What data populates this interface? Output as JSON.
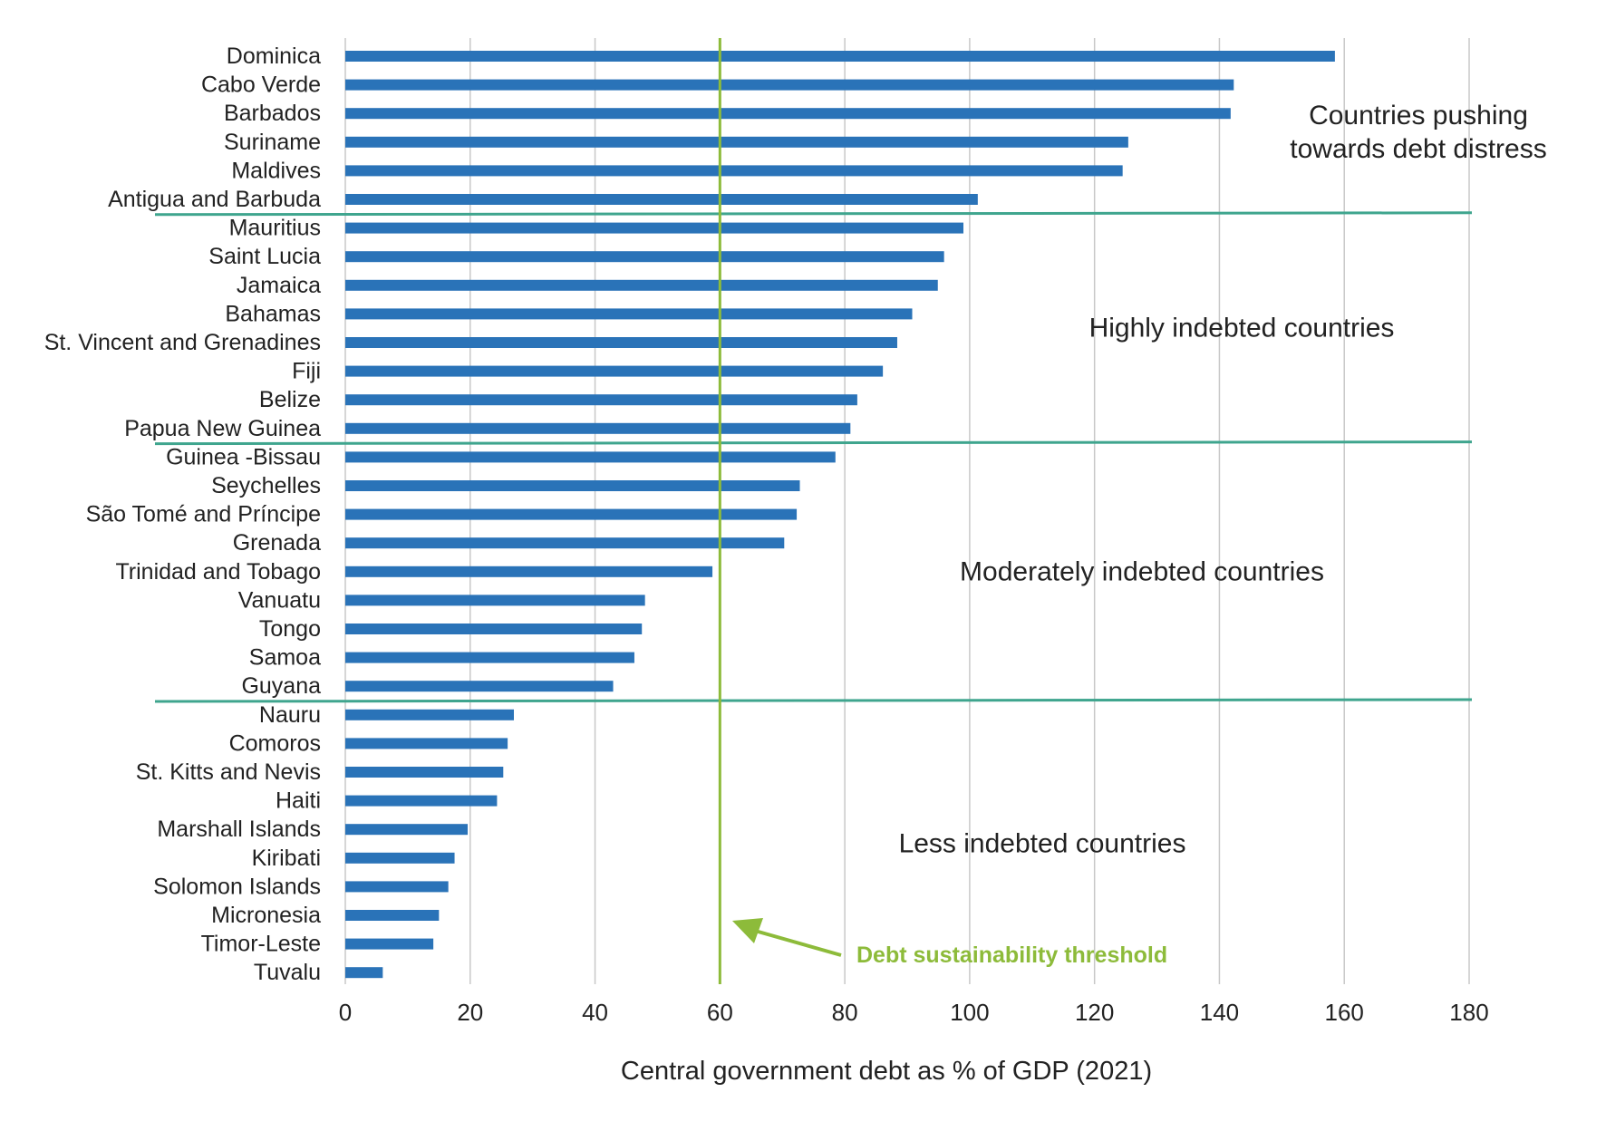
{
  "chart_data": {
    "type": "bar",
    "orientation": "horizontal",
    "title": "",
    "xlabel": "Central government debt as % of GDP (2021)",
    "ylabel": "",
    "xlim": [
      0,
      180
    ],
    "xticks": [
      0,
      20,
      40,
      60,
      80,
      100,
      120,
      140,
      160,
      180
    ],
    "grid": true,
    "categories": [
      "Dominica",
      "Cabo Verde",
      "Barbados",
      "Suriname",
      "Maldives",
      "Antigua and Barbuda",
      "Mauritius",
      "Saint Lucia",
      "Jamaica",
      "Bahamas",
      "St. Vincent and Grenadines",
      "Fiji",
      "Belize",
      "Papua New Guinea",
      "Guinea -Bissau",
      "Seychelles",
      "São Tomé and Príncipe",
      "Grenada",
      "Trinidad and Tobago",
      "Vanuatu",
      "Tongo",
      "Samoa",
      "Guyana",
      "Nauru",
      "Comoros",
      "St. Kitts and Nevis",
      "Haiti",
      "Marshall Islands",
      "Kiribati",
      "Solomon Islands",
      "Micronesia",
      "Timor-Leste",
      "Tuvalu"
    ],
    "values": [
      158.5,
      142.3,
      141.8,
      125.4,
      124.5,
      101.3,
      99.0,
      95.9,
      94.9,
      90.8,
      88.4,
      86.1,
      82.0,
      80.9,
      78.5,
      72.8,
      72.3,
      70.3,
      58.8,
      48.0,
      47.5,
      46.3,
      42.9,
      27.0,
      26.0,
      25.3,
      24.3,
      19.6,
      17.5,
      16.5,
      15.0,
      14.1,
      6.0
    ],
    "bar_color": "#2a73b8",
    "threshold": {
      "value": 60,
      "label": "Debt sustainability threshold",
      "color": "#8dbb3a"
    },
    "groups": [
      {
        "label_lines": [
          "Countries pushing",
          "towards debt distress"
        ],
        "first": "Dominica",
        "last": "Antigua and Barbuda"
      },
      {
        "label_lines": [
          "Highly indebted countries"
        ],
        "first": "Mauritius",
        "last": "Papua New Guinea"
      },
      {
        "label_lines": [
          "Moderately indebted countries"
        ],
        "first": "Guinea -Bissau",
        "last": "Guyana"
      },
      {
        "label_lines": [
          "Less indebted countries"
        ],
        "first": "Nauru",
        "last": "Tuvalu"
      }
    ],
    "separator_color": "#3fa58e",
    "gridline_color": "#c8c8c8"
  }
}
